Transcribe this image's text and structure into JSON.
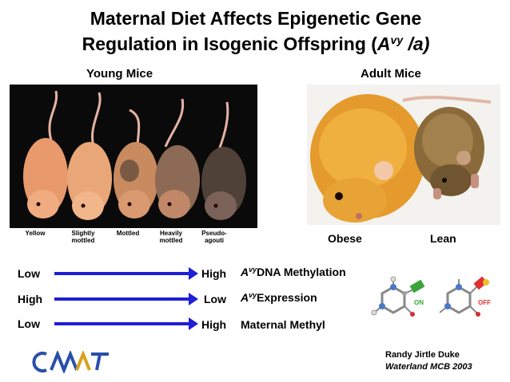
{
  "title": {
    "line1": "Maternal Diet Affects Epigenetic Gene",
    "line2_prefix": "Regulation in Isogenic Offspring (",
    "line2_allele": "A",
    "line2_sup": "vy",
    "line2_suffix": " /a)"
  },
  "young": {
    "heading": "Young Mice",
    "labels": [
      {
        "line1": "Yellow",
        "line2": ""
      },
      {
        "line1": "Slightly",
        "line2": "mottled"
      },
      {
        "line1": "Mottled",
        "line2": ""
      },
      {
        "line1": "Heavily",
        "line2": "mottled"
      },
      {
        "line1": "Pseudo-",
        "line2": "agouti"
      }
    ]
  },
  "adult": {
    "heading": "Adult Mice",
    "obese": "Obese",
    "lean": "Lean"
  },
  "rows": [
    {
      "left": "Low",
      "right": "High",
      "allele": "A",
      "sup": "vy",
      "desc": "DNA Methylation"
    },
    {
      "left": "High",
      "right": "Low",
      "allele": "A",
      "sup": "vy",
      "desc": "Expression"
    },
    {
      "left": "Low",
      "right": "High",
      "allele": "",
      "sup": "",
      "desc": "Maternal Methyl"
    }
  ],
  "molecules": {
    "on_label": "ON",
    "off_label": "OFF"
  },
  "credits": {
    "line1": "Randy Jirtle Duke",
    "line2": "Waterland MCB 2003"
  },
  "logo": {
    "text": "CMMT"
  },
  "colors": {
    "arrow": "#1f1fd6",
    "on": "#3aa43a",
    "off": "#e03030",
    "logo_blue": "#2a4fa8",
    "logo_gold": "#d8a21e"
  }
}
